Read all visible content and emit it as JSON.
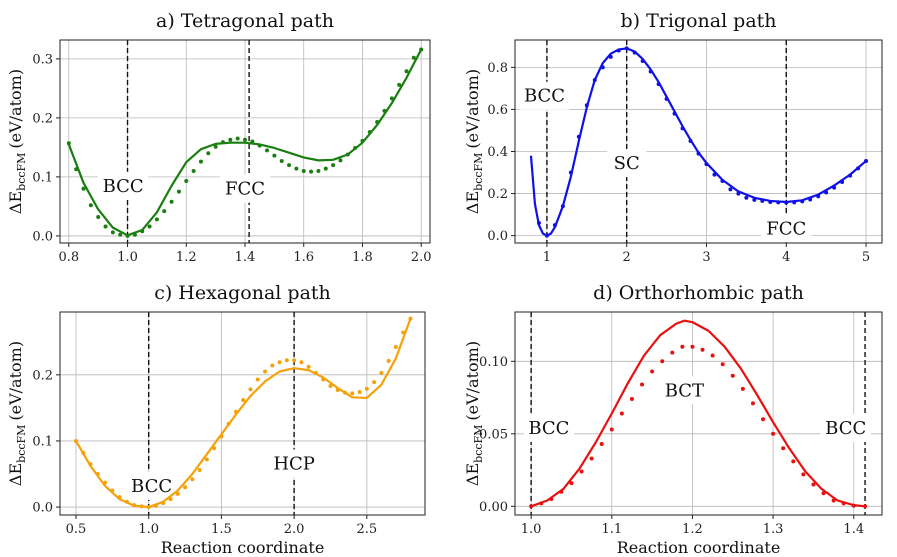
{
  "chart_data": [
    {
      "id": "a",
      "type": "line",
      "title": "a) Tetragonal path",
      "xlabel": "",
      "ylabel": "ΔE",
      "ylabel_sub": "bccFM",
      "ylabel_unit": "(eV/atom)",
      "xlim": [
        0.77,
        2.03
      ],
      "ylim": [
        -0.012,
        0.332
      ],
      "xticks": [
        0.8,
        1.0,
        1.2,
        1.4,
        1.6,
        1.8,
        2.0
      ],
      "xtick_labels": [
        "0.8",
        "1.0",
        "1.2",
        "1.4",
        "1.6",
        "1.8",
        "2.0"
      ],
      "yticks": [
        0.0,
        0.1,
        0.2,
        0.3
      ],
      "ytick_labels": [
        "0.0",
        "0.1",
        "0.2",
        "0.3"
      ],
      "color": "#1a7f10",
      "vlines": [
        1.0,
        1.414
      ],
      "annotations": [
        {
          "text": "BCC",
          "x": 0.985,
          "y": 0.085
        },
        {
          "text": "FCC",
          "x": 1.4,
          "y": 0.08
        }
      ],
      "series": [
        {
          "name": "fit",
          "style": "line",
          "x": [
            0.8,
            0.85,
            0.9,
            0.95,
            1.0,
            1.05,
            1.1,
            1.15,
            1.2,
            1.25,
            1.3,
            1.35,
            1.4,
            1.45,
            1.5,
            1.55,
            1.6,
            1.65,
            1.7,
            1.75,
            1.8,
            1.85,
            1.9,
            1.95,
            2.0
          ],
          "y": [
            0.155,
            0.09,
            0.045,
            0.014,
            0.001,
            0.01,
            0.04,
            0.085,
            0.125,
            0.147,
            0.156,
            0.158,
            0.158,
            0.155,
            0.149,
            0.141,
            0.133,
            0.128,
            0.129,
            0.138,
            0.158,
            0.188,
            0.225,
            0.268,
            0.316
          ]
        },
        {
          "name": "data",
          "style": "dots",
          "x": [
            0.8,
            0.825,
            0.85,
            0.875,
            0.9,
            0.925,
            0.95,
            0.975,
            1.0,
            1.025,
            1.05,
            1.075,
            1.1,
            1.125,
            1.15,
            1.175,
            1.2,
            1.225,
            1.25,
            1.275,
            1.3,
            1.325,
            1.35,
            1.375,
            1.4,
            1.425,
            1.45,
            1.475,
            1.5,
            1.525,
            1.55,
            1.575,
            1.6,
            1.625,
            1.65,
            1.675,
            1.7,
            1.725,
            1.75,
            1.775,
            1.8,
            1.825,
            1.85,
            1.875,
            1.9,
            1.925,
            1.95,
            1.975,
            2.0
          ],
          "y": [
            0.157,
            0.113,
            0.08,
            0.052,
            0.032,
            0.016,
            0.006,
            0.002,
            0.0,
            0.002,
            0.008,
            0.016,
            0.028,
            0.042,
            0.058,
            0.075,
            0.093,
            0.11,
            0.126,
            0.14,
            0.151,
            0.159,
            0.163,
            0.165,
            0.163,
            0.16,
            0.153,
            0.145,
            0.136,
            0.127,
            0.12,
            0.114,
            0.11,
            0.109,
            0.11,
            0.114,
            0.12,
            0.128,
            0.138,
            0.149,
            0.161,
            0.176,
            0.193,
            0.212,
            0.233,
            0.256,
            0.279,
            0.302,
            0.316
          ]
        }
      ]
    },
    {
      "id": "b",
      "type": "line",
      "title": "b) Trigonal path",
      "xlabel": "",
      "ylabel": "ΔE",
      "ylabel_sub": "bccFM",
      "ylabel_unit": "(eV/atom)",
      "xlim": [
        0.6,
        5.2
      ],
      "ylim": [
        -0.035,
        0.93
      ],
      "xticks": [
        1,
        2,
        3,
        4,
        5
      ],
      "xtick_labels": [
        "1",
        "2",
        "3",
        "4",
        "5"
      ],
      "yticks": [
        0.0,
        0.2,
        0.4,
        0.6,
        0.8
      ],
      "ytick_labels": [
        "0.0",
        "0.2",
        "0.4",
        "0.6",
        "0.8"
      ],
      "color": "#1010e8",
      "vlines": [
        1.0,
        2.0,
        4.0
      ],
      "annotations": [
        {
          "text": "BCC",
          "x": 0.97,
          "y": 0.665
        },
        {
          "text": "SC",
          "x": 2.0,
          "y": 0.345
        },
        {
          "text": "FCC",
          "x": 4.0,
          "y": 0.035
        }
      ],
      "series": [
        {
          "name": "fit",
          "style": "line",
          "x": [
            0.8,
            0.85,
            0.9,
            0.95,
            1.0,
            1.05,
            1.1,
            1.2,
            1.3,
            1.4,
            1.5,
            1.6,
            1.7,
            1.8,
            1.9,
            2.0,
            2.1,
            2.2,
            2.3,
            2.4,
            2.5,
            2.6,
            2.7,
            2.8,
            2.9,
            3.0,
            3.2,
            3.4,
            3.6,
            3.8,
            4.0,
            4.2,
            4.4,
            4.6,
            4.8,
            5.0
          ],
          "y": [
            0.38,
            0.15,
            0.05,
            0.01,
            0.0,
            0.01,
            0.04,
            0.14,
            0.28,
            0.45,
            0.61,
            0.74,
            0.82,
            0.865,
            0.885,
            0.89,
            0.875,
            0.84,
            0.79,
            0.73,
            0.66,
            0.59,
            0.52,
            0.455,
            0.395,
            0.345,
            0.265,
            0.21,
            0.18,
            0.165,
            0.16,
            0.168,
            0.195,
            0.238,
            0.29,
            0.355
          ]
        },
        {
          "name": "data",
          "style": "dots",
          "x": [
            0.9,
            1.0,
            1.1,
            1.2,
            1.3,
            1.4,
            1.5,
            1.6,
            1.7,
            1.8,
            1.9,
            2.0,
            2.1,
            2.2,
            2.3,
            2.4,
            2.5,
            2.6,
            2.7,
            2.8,
            2.9,
            3.0,
            3.1,
            3.2,
            3.3,
            3.4,
            3.5,
            3.6,
            3.7,
            3.8,
            3.9,
            4.0,
            4.1,
            4.2,
            4.3,
            4.4,
            4.5,
            4.6,
            4.7,
            4.8,
            4.9,
            5.0
          ],
          "y": [
            0.06,
            0.0,
            0.05,
            0.14,
            0.3,
            0.47,
            0.62,
            0.74,
            0.8,
            0.85,
            0.88,
            0.89,
            0.87,
            0.83,
            0.78,
            0.72,
            0.65,
            0.58,
            0.51,
            0.45,
            0.39,
            0.34,
            0.29,
            0.26,
            0.22,
            0.2,
            0.18,
            0.17,
            0.165,
            0.16,
            0.158,
            0.157,
            0.158,
            0.163,
            0.172,
            0.187,
            0.205,
            0.228,
            0.255,
            0.285,
            0.32,
            0.355
          ]
        }
      ]
    },
    {
      "id": "c",
      "type": "line",
      "title": "c) Hexagonal path",
      "xlabel": "Reaction coordinate",
      "ylabel": "ΔE",
      "ylabel_sub": "bccFM",
      "ylabel_unit": "(eV/atom)",
      "xlim": [
        0.39,
        2.9
      ],
      "ylim": [
        -0.012,
        0.295
      ],
      "xticks": [
        0.5,
        1.0,
        1.5,
        2.0,
        2.5
      ],
      "xtick_labels": [
        "0.5",
        "1.0",
        "1.5",
        "2.0",
        "2.5"
      ],
      "yticks": [
        0.0,
        0.1,
        0.2
      ],
      "ytick_labels": [
        "0.0",
        "0.1",
        "0.2"
      ],
      "color": "#f5a20a",
      "vlines": [
        1.0,
        2.0
      ],
      "annotations": [
        {
          "text": "BCC",
          "x": 1.02,
          "y": 0.032
        },
        {
          "text": "HCP",
          "x": 2.0,
          "y": 0.066
        }
      ],
      "series": [
        {
          "name": "fit",
          "style": "line",
          "x": [
            0.5,
            0.6,
            0.7,
            0.8,
            0.9,
            1.0,
            1.1,
            1.2,
            1.3,
            1.4,
            1.5,
            1.6,
            1.7,
            1.8,
            1.9,
            2.0,
            2.1,
            2.2,
            2.3,
            2.4,
            2.5,
            2.6,
            2.7,
            2.8
          ],
          "y": [
            0.1,
            0.062,
            0.032,
            0.012,
            0.002,
            0.0,
            0.008,
            0.025,
            0.05,
            0.08,
            0.11,
            0.14,
            0.168,
            0.19,
            0.205,
            0.21,
            0.207,
            0.196,
            0.18,
            0.166,
            0.165,
            0.185,
            0.225,
            0.285
          ]
        },
        {
          "name": "data",
          "style": "dots",
          "x": [
            0.5,
            0.55,
            0.6,
            0.65,
            0.7,
            0.75,
            0.8,
            0.85,
            0.9,
            0.95,
            1.0,
            1.05,
            1.1,
            1.15,
            1.2,
            1.25,
            1.3,
            1.35,
            1.4,
            1.45,
            1.5,
            1.55,
            1.6,
            1.65,
            1.7,
            1.75,
            1.8,
            1.85,
            1.9,
            1.95,
            2.0,
            2.05,
            2.1,
            2.15,
            2.2,
            2.25,
            2.3,
            2.35,
            2.4,
            2.45,
            2.5,
            2.55,
            2.6,
            2.65,
            2.7,
            2.75,
            2.8
          ],
          "y": [
            0.1,
            0.082,
            0.065,
            0.05,
            0.037,
            0.025,
            0.015,
            0.008,
            0.003,
            0.001,
            0.0,
            0.002,
            0.006,
            0.012,
            0.02,
            0.03,
            0.042,
            0.056,
            0.072,
            0.089,
            0.107,
            0.126,
            0.144,
            0.162,
            0.178,
            0.193,
            0.205,
            0.214,
            0.219,
            0.222,
            0.222,
            0.219,
            0.212,
            0.203,
            0.193,
            0.183,
            0.177,
            0.173,
            0.172,
            0.174,
            0.179,
            0.189,
            0.203,
            0.221,
            0.242,
            0.264,
            0.285
          ]
        }
      ]
    },
    {
      "id": "d",
      "type": "line",
      "title": "d) Orthorhombic path",
      "xlabel": "Reaction coordinate",
      "ylabel": "ΔE",
      "ylabel_sub": "bccFM",
      "ylabel_unit": "(eV/atom)",
      "xlim": [
        0.98,
        1.435
      ],
      "ylim": [
        -0.006,
        0.134
      ],
      "xticks": [
        1.0,
        1.1,
        1.2,
        1.3,
        1.4
      ],
      "xtick_labels": [
        "1.0",
        "1.1",
        "1.2",
        "1.3",
        "1.4"
      ],
      "yticks": [
        0.0,
        0.05,
        0.1
      ],
      "ytick_labels": [
        "0.00",
        "0.05",
        "0.10"
      ],
      "color": "#e81010",
      "vlines": [
        1.0,
        1.414
      ],
      "annotations": [
        {
          "text": "BCC",
          "x": 1.022,
          "y": 0.054
        },
        {
          "text": "BCT",
          "x": 1.19,
          "y": 0.08
        },
        {
          "text": "BCC",
          "x": 1.39,
          "y": 0.054
        }
      ],
      "series": [
        {
          "name": "fit",
          "style": "line",
          "x": [
            1.0,
            1.02,
            1.04,
            1.06,
            1.08,
            1.1,
            1.12,
            1.14,
            1.16,
            1.18,
            1.19,
            1.2,
            1.22,
            1.24,
            1.26,
            1.28,
            1.3,
            1.32,
            1.34,
            1.36,
            1.38,
            1.4,
            1.414
          ],
          "y": [
            0.0,
            0.004,
            0.012,
            0.026,
            0.044,
            0.064,
            0.085,
            0.104,
            0.118,
            0.126,
            0.128,
            0.127,
            0.121,
            0.11,
            0.095,
            0.077,
            0.058,
            0.04,
            0.024,
            0.012,
            0.004,
            0.0008,
            0.0
          ]
        },
        {
          "name": "data",
          "style": "dots",
          "x": [
            1.0,
            1.0125,
            1.025,
            1.0375,
            1.05,
            1.0625,
            1.075,
            1.0875,
            1.1,
            1.1125,
            1.125,
            1.1375,
            1.15,
            1.1625,
            1.175,
            1.1875,
            1.2,
            1.2125,
            1.225,
            1.2375,
            1.25,
            1.2625,
            1.275,
            1.2875,
            1.3,
            1.3125,
            1.325,
            1.3375,
            1.35,
            1.3625,
            1.375,
            1.3875,
            1.4,
            1.414
          ],
          "y": [
            0.0,
            0.002,
            0.005,
            0.01,
            0.016,
            0.024,
            0.033,
            0.043,
            0.053,
            0.064,
            0.074,
            0.084,
            0.093,
            0.1,
            0.106,
            0.11,
            0.11,
            0.108,
            0.104,
            0.098,
            0.09,
            0.081,
            0.071,
            0.06,
            0.05,
            0.04,
            0.031,
            0.022,
            0.015,
            0.009,
            0.004,
            0.002,
            0.0005,
            0.0
          ]
        }
      ]
    }
  ]
}
